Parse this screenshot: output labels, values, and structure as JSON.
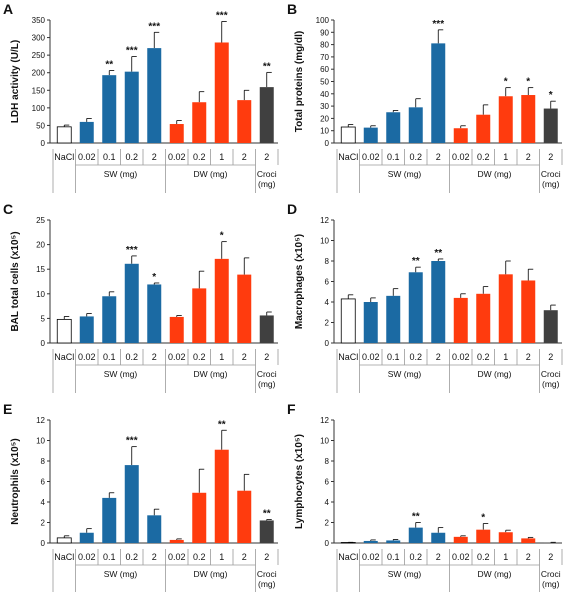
{
  "colors": {
    "NaCl": "#ffffff",
    "SW": "#1b6aa3",
    "DW": "#ff3b0e",
    "Croci": "#404040",
    "axis": "#333333",
    "table_line": "#9a9a9a"
  },
  "category_labels": [
    "NaCl",
    "0.02",
    "0.1",
    "0.2",
    "2",
    "0.02",
    "0.2",
    "1",
    "2",
    "2"
  ],
  "category_groups": [
    "NaCl",
    "SW",
    "SW",
    "SW",
    "SW",
    "DW",
    "DW",
    "DW",
    "DW",
    "Croci"
  ],
  "group_labels": {
    "SW": "SW (mg)",
    "DW": "DW (mg)",
    "Croci_top": "Croci",
    "Croci_bottom": "(mg)"
  },
  "chart_data": [
    {
      "panel": "A",
      "type": "bar",
      "ylabel": "LDH activity (U/L)",
      "ylim": [
        0,
        350
      ],
      "yticks": [
        0,
        50,
        100,
        150,
        200,
        250,
        300,
        350
      ],
      "values": [
        46,
        60,
        193,
        203,
        270,
        54,
        116,
        286,
        122,
        159
      ],
      "errors": [
        5,
        10,
        13,
        43,
        45,
        10,
        30,
        60,
        28,
        42
      ],
      "significance": [
        "",
        "",
        "**",
        "***",
        "***",
        "",
        "",
        "***",
        "",
        "**"
      ]
    },
    {
      "panel": "B",
      "type": "bar",
      "ylabel": "Total proteins (mg/dl)",
      "ylim": [
        0,
        100
      ],
      "yticks": [
        0,
        10,
        20,
        30,
        40,
        50,
        60,
        70,
        80,
        90,
        100
      ],
      "values": [
        13,
        12.5,
        25,
        29,
        81,
        12,
        23,
        38,
        39,
        28
      ],
      "errors": [
        2,
        1.5,
        1.5,
        7,
        11,
        2,
        8,
        7,
        6,
        6
      ],
      "significance": [
        "",
        "",
        "",
        "",
        "***",
        "",
        "",
        "*",
        "*",
        "*"
      ]
    },
    {
      "panel": "C",
      "type": "bar",
      "ylabel": "BAL total cells (x10⁵)",
      "ylim": [
        0,
        25
      ],
      "yticks": [
        0,
        5,
        10,
        15,
        20,
        25
      ],
      "values": [
        4.8,
        5.4,
        9.5,
        16.1,
        11.9,
        5.3,
        11.1,
        17.1,
        13.9,
        5.6
      ],
      "errors": [
        0.6,
        0.6,
        0.9,
        1.6,
        0.3,
        0.3,
        3.5,
        3.5,
        3.4,
        0.7
      ],
      "significance": [
        "",
        "",
        "",
        "***",
        "*",
        "",
        "",
        "*",
        "",
        ""
      ]
    },
    {
      "panel": "D",
      "type": "bar",
      "ylabel": "Macrophages (x10⁵)",
      "ylim": [
        0,
        12
      ],
      "yticks": [
        0,
        2,
        4,
        6,
        8,
        10,
        12
      ],
      "values": [
        4.3,
        4.0,
        4.6,
        6.9,
        8.0,
        4.4,
        4.8,
        6.7,
        6.1,
        3.2
      ],
      "errors": [
        0.4,
        0.4,
        0.7,
        0.5,
        0.2,
        0.4,
        0.7,
        1.3,
        1.1,
        0.5
      ],
      "significance": [
        "",
        "",
        "",
        "**",
        "**",
        "",
        "",
        "",
        "",
        ""
      ]
    },
    {
      "panel": "E",
      "type": "bar",
      "ylabel": "Neutrophils (x10⁵)",
      "ylim": [
        0,
        12
      ],
      "yticks": [
        0,
        2,
        4,
        6,
        8,
        10,
        12
      ],
      "values": [
        0.5,
        1.0,
        4.4,
        7.6,
        2.7,
        0.3,
        4.9,
        9.1,
        5.1,
        2.2
      ],
      "errors": [
        0.2,
        0.4,
        0.5,
        1.8,
        0.6,
        0.1,
        2.3,
        1.9,
        1.6,
        0.1
      ],
      "significance": [
        "",
        "",
        "",
        "***",
        "",
        "",
        "",
        "**",
        "",
        "**"
      ]
    },
    {
      "panel": "F",
      "type": "bar",
      "ylabel": "Lymphocytes (x10⁵)",
      "ylim": [
        0,
        12
      ],
      "yticks": [
        0,
        2,
        4,
        6,
        8,
        10,
        12
      ],
      "values": [
        0.05,
        0.2,
        0.25,
        1.5,
        1.0,
        0.6,
        1.3,
        1.05,
        0.45,
        0.05
      ],
      "errors": [
        0.02,
        0.1,
        0.1,
        0.5,
        0.5,
        0.1,
        0.6,
        0.2,
        0.1,
        0.02
      ],
      "significance": [
        "",
        "",
        "",
        "**",
        "",
        "",
        "*",
        "",
        "",
        ""
      ]
    }
  ]
}
